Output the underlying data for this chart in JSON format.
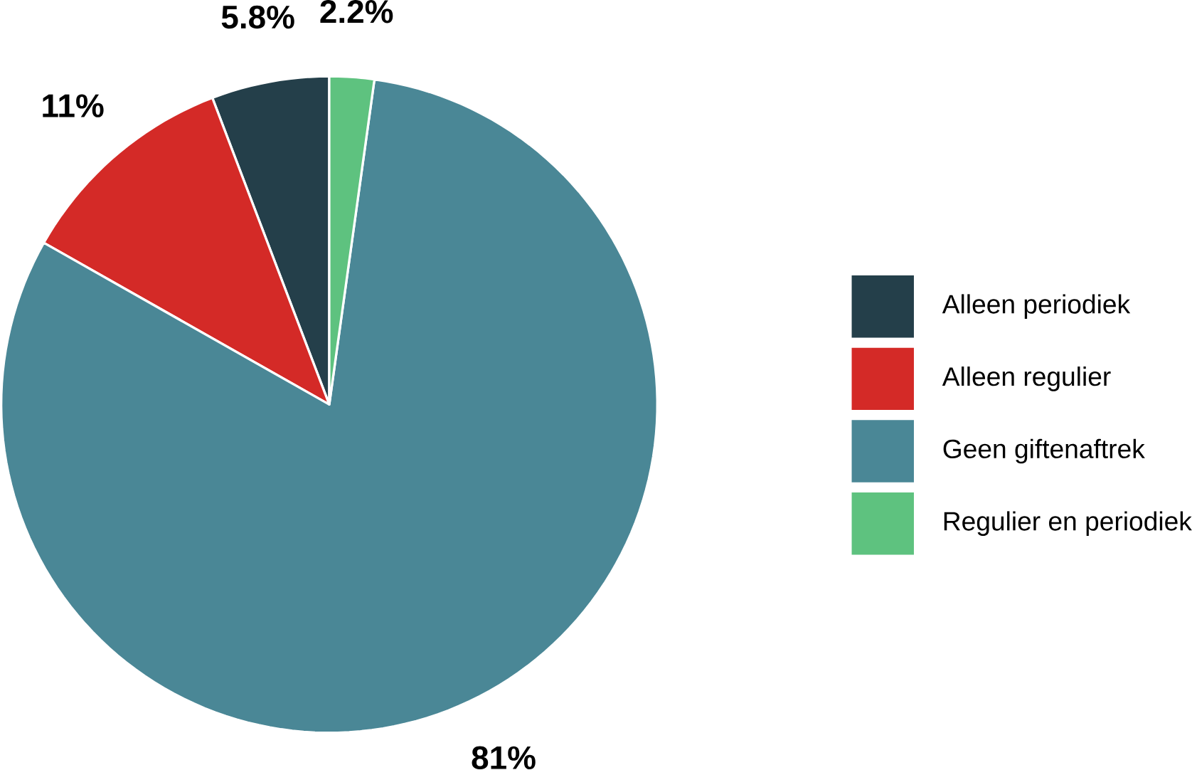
{
  "chart_data": {
    "type": "pie",
    "categories": [
      "Alleen periodiek",
      "Alleen regulier",
      "Geen giftenaftrek",
      "Regulier en periodiek"
    ],
    "values": [
      5.8,
      11,
      81,
      2.2
    ],
    "colors": [
      "#243f4a",
      "#d42a27",
      "#4a8796",
      "#5ec27f"
    ],
    "value_labels": [
      "5.8%",
      "11%",
      "81%",
      "2.2%"
    ],
    "legend": "right"
  }
}
